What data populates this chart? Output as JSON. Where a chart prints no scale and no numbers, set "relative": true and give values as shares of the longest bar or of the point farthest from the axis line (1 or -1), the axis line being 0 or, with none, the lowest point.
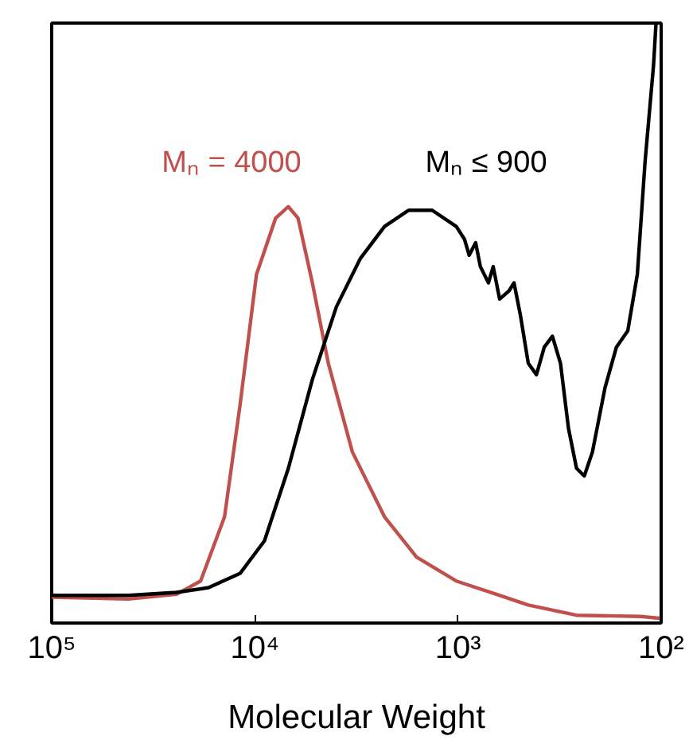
{
  "chart_data": {
    "type": "line",
    "xlabel": "Molecular Weight",
    "relative": true,
    "log": "x",
    "grid": false,
    "tick_labels": "x",
    "marker": "none",
    "line_style": "solid",
    "xlim": [
      100000,
      100
    ],
    "xticks": [
      {
        "value": 100000,
        "label": "10⁵"
      },
      {
        "value": 10000,
        "label": "10⁴"
      },
      {
        "value": 1000,
        "label": "10³"
      },
      {
        "value": 100,
        "label": "10²"
      }
    ],
    "series": [
      {
        "name": "Mₙ = 4000",
        "color": "#c0504d",
        "x": [
          100000,
          41900,
          24300,
          18500,
          14100,
          11800,
          9820,
          7900,
          6840,
          6130,
          5210,
          4350,
          3310,
          2300,
          1600,
          1020,
          647,
          451,
          261,
          126,
          102
        ],
        "values": [
          0.043,
          0.04,
          0.048,
          0.07,
          0.177,
          0.366,
          0.581,
          0.675,
          0.694,
          0.675,
          0.567,
          0.433,
          0.285,
          0.177,
          0.11,
          0.07,
          0.048,
          0.03,
          0.013,
          0.011,
          0.008
        ]
      },
      {
        "name": "Mₙ ≤ 900",
        "color": "#000000",
        "x": [
          100000,
          41900,
          24300,
          16900,
          11800,
          8970,
          6840,
          5210,
          3970,
          3020,
          2300,
          1750,
          1340,
          1020,
          930,
          881,
          819,
          776,
          708,
          671,
          624,
          560,
          530,
          493,
          451,
          411,
          376,
          343,
          313,
          286,
          261,
          239,
          218,
          189,
          166,
          146,
          131,
          120,
          109,
          106
        ],
        "values": [
          0.046,
          0.046,
          0.051,
          0.059,
          0.083,
          0.137,
          0.258,
          0.406,
          0.527,
          0.608,
          0.661,
          0.688,
          0.688,
          0.661,
          0.64,
          0.613,
          0.634,
          0.594,
          0.567,
          0.594,
          0.54,
          0.554,
          0.567,
          0.513,
          0.433,
          0.414,
          0.46,
          0.478,
          0.433,
          0.325,
          0.258,
          0.245,
          0.285,
          0.392,
          0.46,
          0.487,
          0.581,
          0.769,
          0.93,
          1.0
        ]
      }
    ]
  }
}
